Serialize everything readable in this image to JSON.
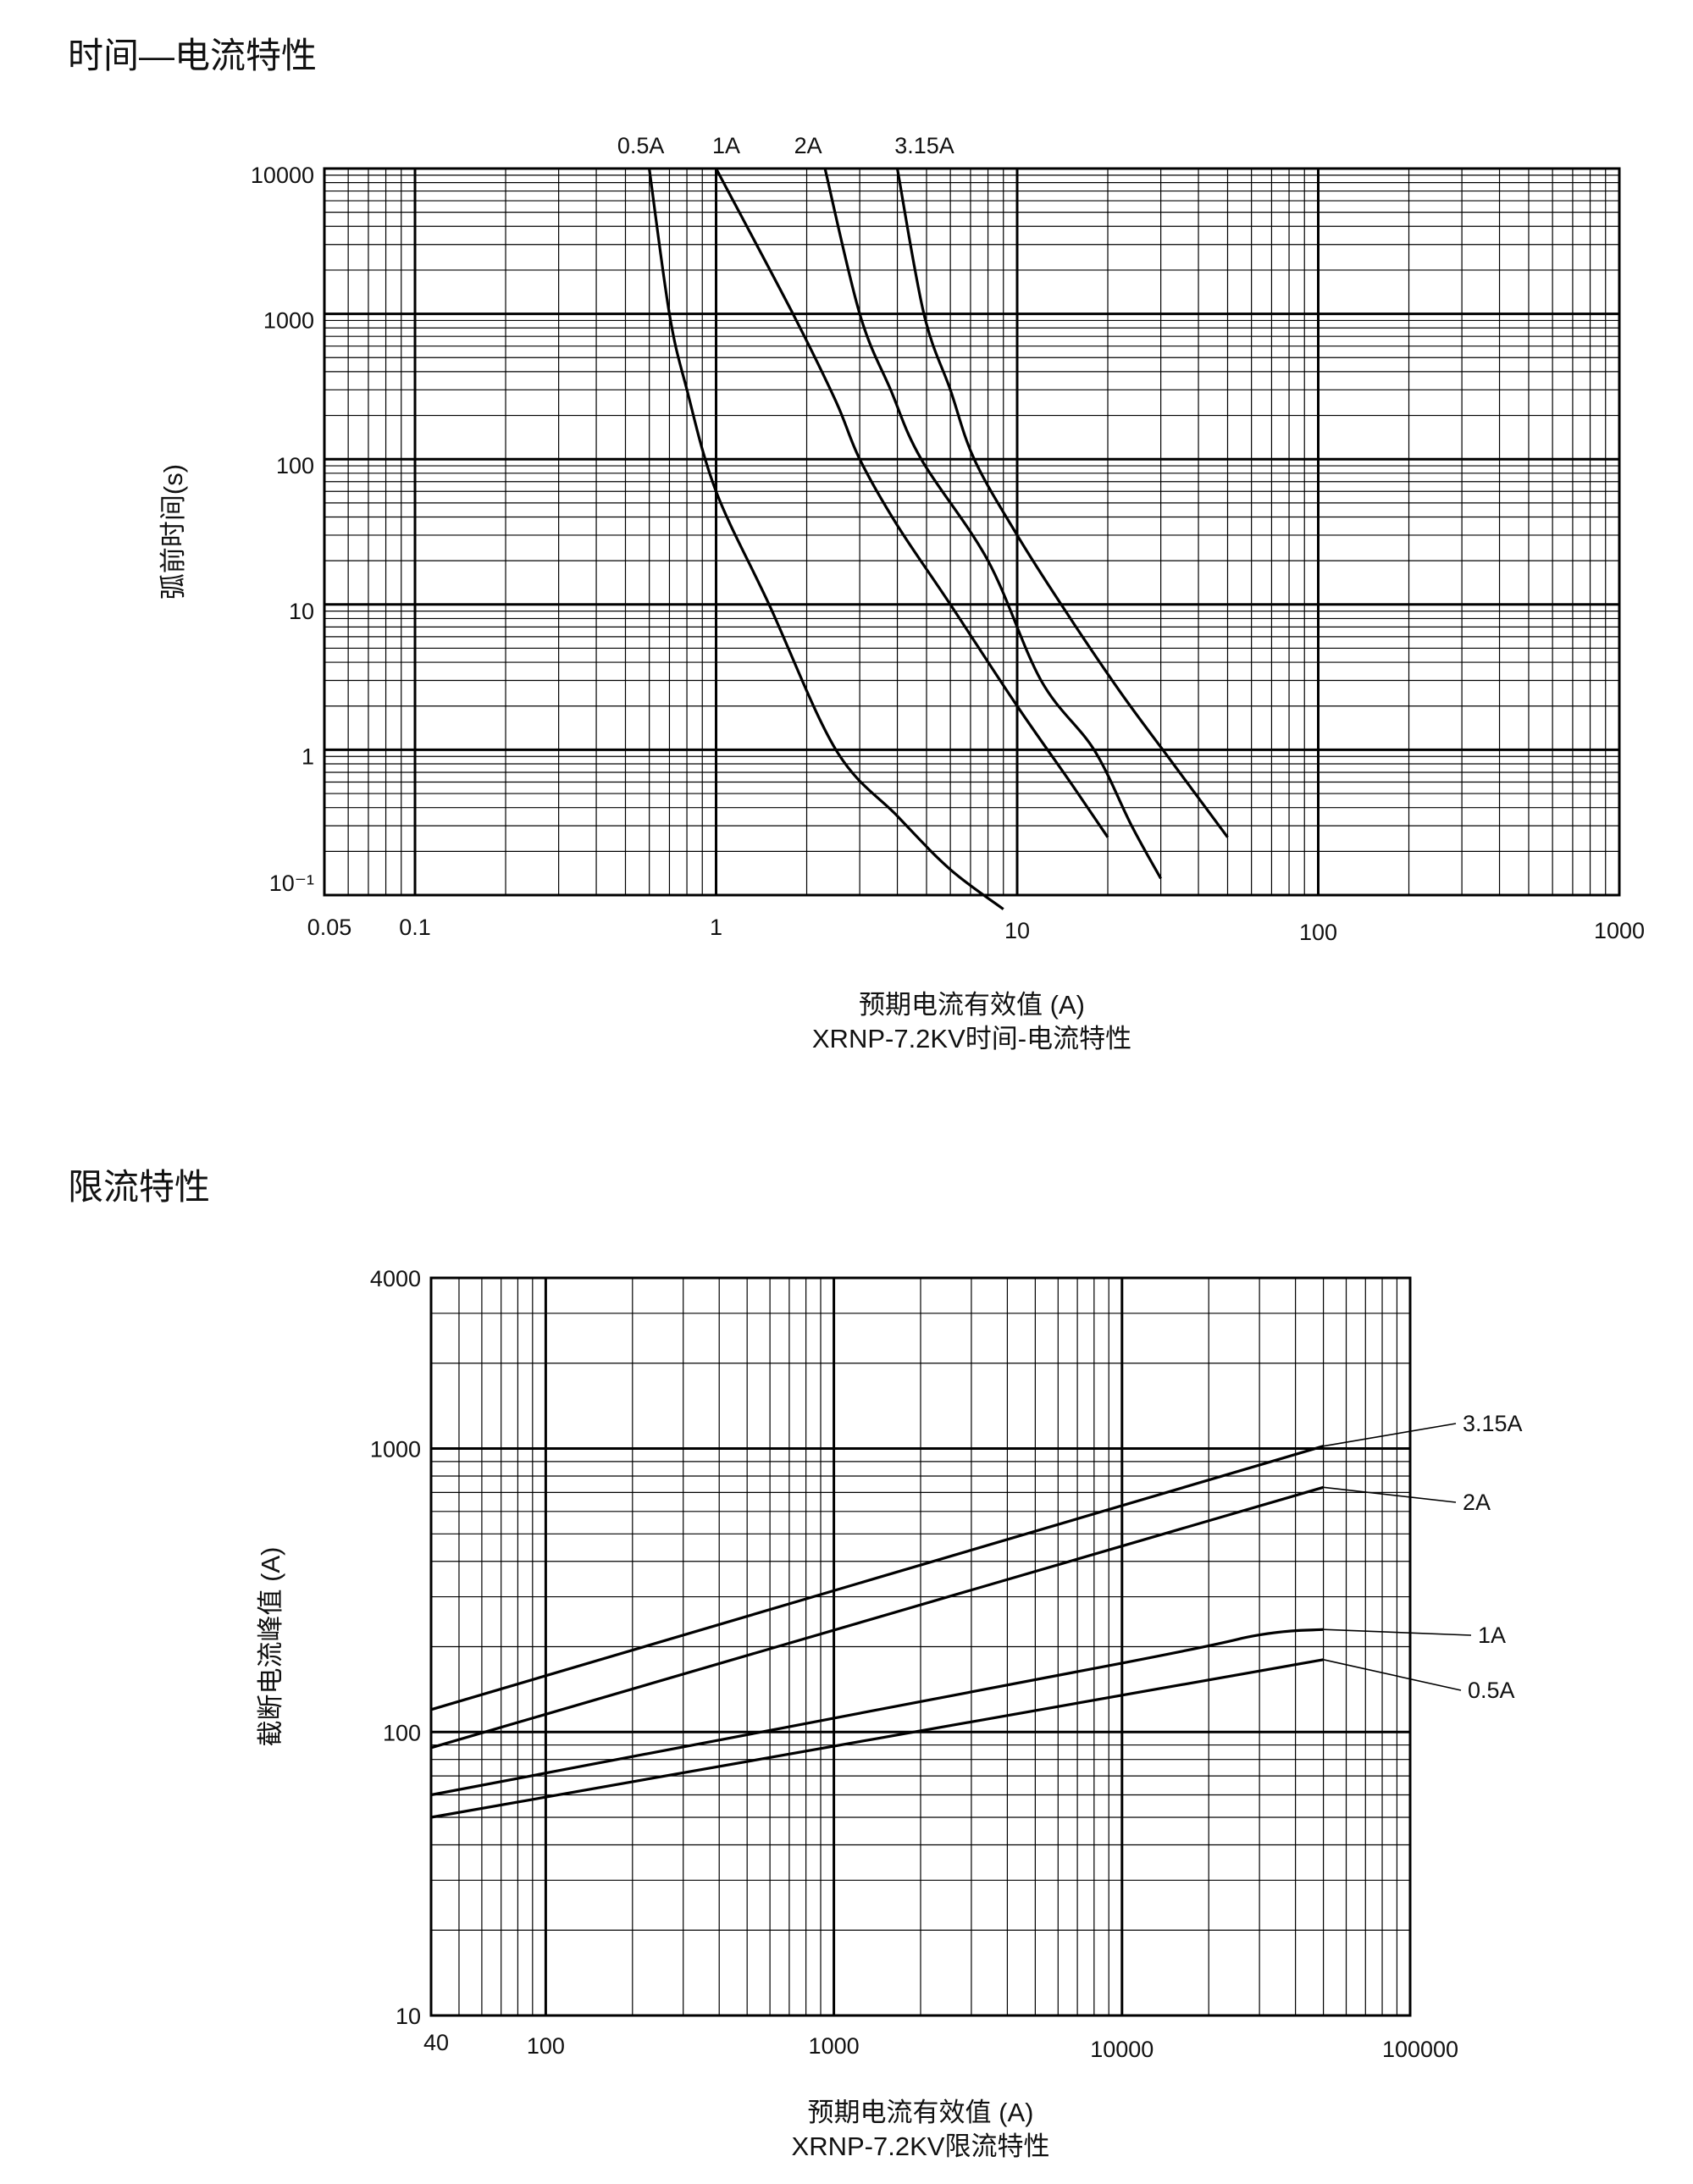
{
  "sections": {
    "tc_title": "时间—电流特性",
    "lim_title": "限流特性"
  },
  "chart_data": [
    {
      "type": "line",
      "title": "XRNP-7.2KV时间-电流特性",
      "xlabel": "预期电流有效值 (A)",
      "ylabel": "弧前时间(s)",
      "xscale": "log",
      "yscale": "log",
      "xlim": [
        0.05,
        1000
      ],
      "ylim": [
        0.1,
        10000
      ],
      "x_tick_labels": [
        "0.05",
        "0.1",
        "1",
        "10",
        "100",
        "1000"
      ],
      "y_tick_labels": [
        "10000",
        "1000",
        "100",
        "10",
        "1",
        "10⁻¹"
      ],
      "grid": true,
      "series": [
        {
          "name": "0.5A",
          "points": [
            [
              0.6,
              10000
            ],
            [
              0.7,
              1000
            ],
            [
              0.8,
              300
            ],
            [
              1.0,
              60
            ],
            [
              1.5,
              10
            ],
            [
              2.5,
              1
            ],
            [
              4.0,
              0.35
            ],
            [
              6.0,
              0.15
            ],
            [
              9.0,
              0.08
            ]
          ]
        },
        {
          "name": "1A",
          "points": [
            [
              1.0,
              10000
            ],
            [
              1.8,
              1000
            ],
            [
              2.5,
              250
            ],
            [
              3.0,
              100
            ],
            [
              4.0,
              35
            ],
            [
              6.0,
              10
            ],
            [
              10.0,
              2
            ],
            [
              15.0,
              0.6
            ],
            [
              20.0,
              0.25
            ]
          ]
        },
        {
          "name": "2A",
          "points": [
            [
              2.3,
              10000
            ],
            [
              3.0,
              1000
            ],
            [
              3.8,
              300
            ],
            [
              4.8,
              100
            ],
            [
              8.0,
              20
            ],
            [
              12.0,
              3
            ],
            [
              18.0,
              1
            ],
            [
              24.0,
              0.3
            ],
            [
              30.0,
              0.13
            ]
          ]
        },
        {
          "name": "3.15A",
          "points": [
            [
              4.0,
              10000
            ],
            [
              4.9,
              1000
            ],
            [
              6.0,
              300
            ],
            [
              7.2,
              100
            ],
            [
              10.0,
              30
            ],
            [
              14.0,
              10
            ],
            [
              22.0,
              2.5
            ],
            [
              33.0,
              0.8
            ],
            [
              50.0,
              0.25
            ]
          ]
        }
      ]
    },
    {
      "type": "line",
      "title": "XRNP-7.2KV限流特性",
      "xlabel": "预期电流有效值 (A)",
      "ylabel": "截断电流峰值 (A)",
      "xscale": "log",
      "yscale": "log",
      "xlim": [
        40,
        100000
      ],
      "ylim": [
        10,
        4000
      ],
      "x_tick_labels": [
        "40",
        "100",
        "1000",
        "10000",
        "100000"
      ],
      "y_tick_labels": [
        "4000",
        "1000",
        "100",
        "10"
      ],
      "grid": true,
      "series": [
        {
          "name": "3.15A",
          "points": [
            [
              40,
              120
            ],
            [
              50000,
              1020
            ]
          ]
        },
        {
          "name": "2A",
          "points": [
            [
              40,
              88
            ],
            [
              50000,
              730
            ]
          ]
        },
        {
          "name": "1A",
          "points": [
            [
              40,
              60
            ],
            [
              10000,
              175
            ],
            [
              30000,
              220
            ],
            [
              50000,
              230
            ]
          ]
        },
        {
          "name": "0.5A",
          "points": [
            [
              40,
              50
            ],
            [
              50000,
              180
            ]
          ]
        }
      ]
    }
  ]
}
